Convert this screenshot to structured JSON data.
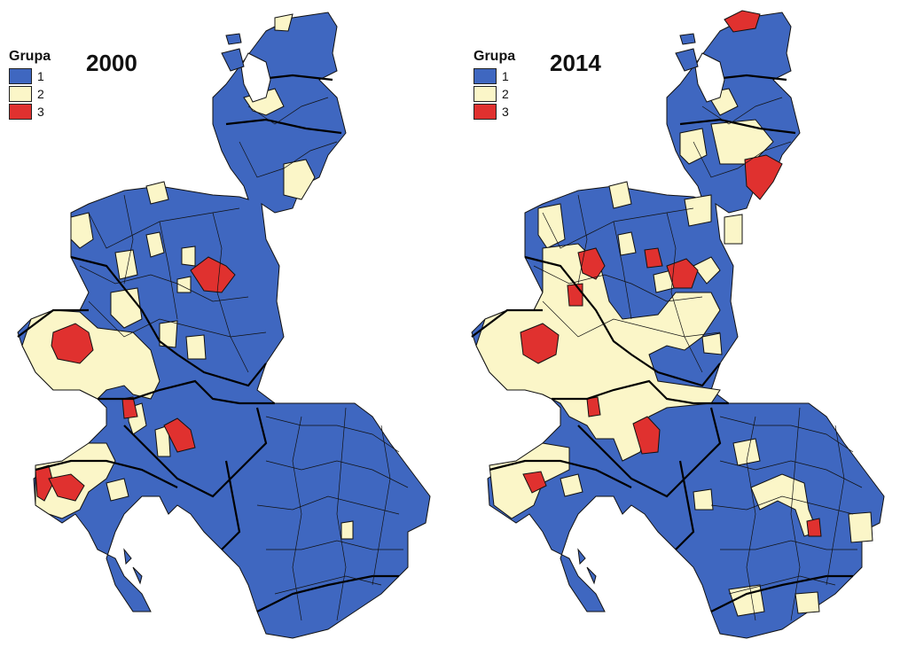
{
  "colors": {
    "group_1": "#3f67c0",
    "group_2": "#fbf6c8",
    "group_3": "#e0312f",
    "border": "#000000"
  },
  "legend": {
    "title": "Grupa",
    "items": [
      {
        "label": "1",
        "color": "#3f67c0"
      },
      {
        "label": "2",
        "color": "#fbf6c8"
      },
      {
        "label": "3",
        "color": "#e0312f"
      }
    ]
  },
  "maps": [
    {
      "year": "2000",
      "counties": [
        {
          "country": "LV",
          "group": "2"
        },
        {
          "country": "EE",
          "group": "2"
        },
        {
          "country": "LT",
          "group": "2"
        },
        {
          "country": "LT",
          "group": "2"
        },
        {
          "country": "PL",
          "group": "3"
        },
        {
          "country": "PL",
          "group": "2"
        },
        {
          "country": "PL",
          "group": "2"
        },
        {
          "country": "PL",
          "group": "2"
        },
        {
          "country": "PL",
          "group": "2"
        },
        {
          "country": "PL",
          "group": "2"
        },
        {
          "country": "CZ",
          "group": "3"
        },
        {
          "country": "CZ",
          "group": "2"
        },
        {
          "country": "AT/SK",
          "group": "3"
        },
        {
          "country": "HU",
          "group": "3"
        },
        {
          "country": "SI/HR",
          "group": "3"
        },
        {
          "country": "SI/HR",
          "group": "3"
        },
        {
          "country": "HR",
          "group": "2"
        },
        {
          "country": "RO",
          "group": "2"
        }
      ]
    },
    {
      "year": "2014",
      "counties": [
        {
          "country": "EE",
          "group": "3"
        },
        {
          "country": "LT",
          "group": "3"
        },
        {
          "country": "LV",
          "group": "2"
        },
        {
          "country": "LT",
          "group": "2"
        },
        {
          "country": "PL",
          "group": "3"
        },
        {
          "country": "PL",
          "group": "3"
        },
        {
          "country": "PL",
          "group": "3"
        },
        {
          "country": "PL",
          "group": "2"
        },
        {
          "country": "CZ",
          "group": "3"
        },
        {
          "country": "CZ",
          "group": "2"
        },
        {
          "country": "AT/SK",
          "group": "3"
        },
        {
          "country": "HU",
          "group": "3"
        },
        {
          "country": "SI",
          "group": "3"
        },
        {
          "country": "HU",
          "group": "2"
        },
        {
          "country": "RO",
          "group": "3"
        },
        {
          "country": "RO",
          "group": "2"
        },
        {
          "country": "RO",
          "group": "2"
        },
        {
          "country": "RO",
          "group": "2"
        }
      ]
    }
  ]
}
